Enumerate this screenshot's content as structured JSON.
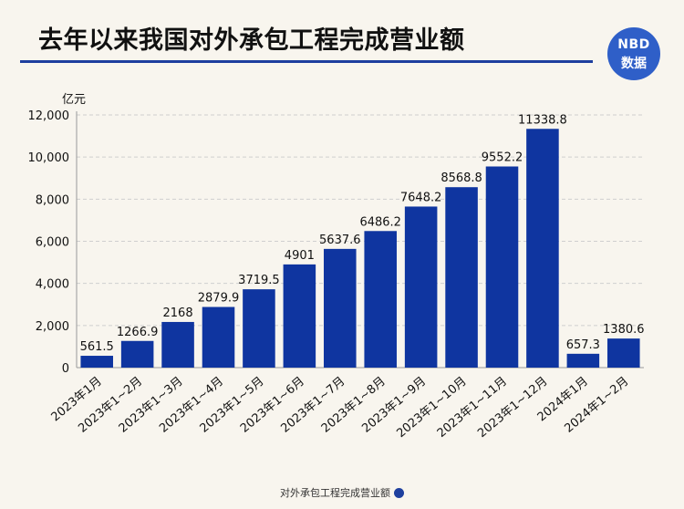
{
  "header": {
    "title": "去年以来我国对外承包工程完成营业额",
    "logo_top": "NBD",
    "logo_bottom": "数据"
  },
  "colors": {
    "bar": "#0f35a0",
    "title_rule": "#1e3f9e",
    "background": "#f8f5ee"
  },
  "chart_data": {
    "type": "bar",
    "title": "去年以来我国对外承包工程完成营业额",
    "ylabel": "亿元",
    "xlabel": "",
    "ylim": [
      0,
      12000
    ],
    "yticks": [
      "0",
      "2,000",
      "4,000",
      "6,000",
      "8,000",
      "10,000",
      "12,000"
    ],
    "grid": true,
    "legend": "bottom-center",
    "categories": [
      "2023年1月",
      "2023年1~2月",
      "2023年1~3月",
      "2023年1~4月",
      "2023年1~5月",
      "2023年1~6月",
      "2023年1~7月",
      "2023年1~8月",
      "2023年1~9月",
      "2023年1~10月",
      "2023年1~11月",
      "2023年1~12月",
      "2024年1月",
      "2024年1~2月"
    ],
    "series": [
      {
        "name": "对外承包工程完成营业额",
        "values": [
          561.5,
          1266.9,
          2168,
          2879.9,
          3719.5,
          4901,
          5637.6,
          6486.2,
          7648.2,
          8568.8,
          9552.2,
          11338.8,
          657.3,
          1380.6
        ],
        "labels": [
          "561.5",
          "1266.9",
          "2168",
          "2879.9",
          "3719.5",
          "4901",
          "5637.6",
          "6486.2",
          "7648.2",
          "8568.8",
          "9552.2",
          "11338.8",
          "657.3",
          "1380.6"
        ]
      }
    ]
  }
}
